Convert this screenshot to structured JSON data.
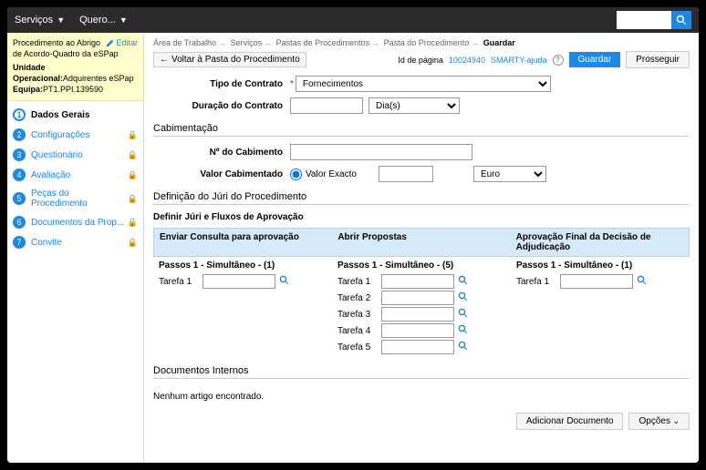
{
  "topbar": {
    "servicos": "Serviços",
    "quero": "Quero..."
  },
  "breadcrumb": {
    "p1": "Área de Trabalho",
    "p2": "Serviços",
    "p3": "Pastas de Procedimentos",
    "p4": "Pasta do Procedimento",
    "current": "Guardar"
  },
  "pageId": {
    "label": "Id de página",
    "value": "10024940"
  },
  "smartyHelp": "SMARTY-ajuda",
  "buttons": {
    "guardar": "Guardar",
    "prosseguir": "Prosseguir",
    "voltar": "Voltar à Pasta do Procedimento",
    "adicionarDoc": "Adicionar Documento",
    "opcoes": "Opções",
    "editar": "Editar"
  },
  "infobox": {
    "line1": "Procedimento ao Abrigo de Acordo-Quadro da eSPap",
    "unidadeLabel": "Unidade Operacional:",
    "unidadeVal": "Adquirentes eSPap",
    "equipaLabel": "Equipa:",
    "equipaVal": "PT1.PPI.139590"
  },
  "steps": [
    {
      "n": "1",
      "label": "Dados Gerais",
      "active": true
    },
    {
      "n": "2",
      "label": "Configurações",
      "lock": true
    },
    {
      "n": "3",
      "label": "Questionário",
      "lock": true
    },
    {
      "n": "4",
      "label": "Avaliação",
      "lock": true
    },
    {
      "n": "5",
      "label": "Peças do Procedimento",
      "lock": true
    },
    {
      "n": "6",
      "label": "Documentos da Prop...",
      "lock": true
    },
    {
      "n": "7",
      "label": "Convite",
      "lock": true
    }
  ],
  "form": {
    "tipoContratoLabel": "Tipo de Contrato",
    "tipoContratoVal": "Fornecimentos",
    "duracaoLabel": "Duração do Contrato",
    "duracaoUnit": "Dia(s)"
  },
  "cabimentacao": {
    "title": "Cabimentação",
    "numLabel": "Nº do Cabimento",
    "valorLabel": "Valor Cabimentado",
    "valorExacto": "Valor Exacto",
    "currency": "Euro"
  },
  "jury": {
    "title": "Definição do Júri do Procedimento",
    "subtitle": "Definir Júri e Fluxos de Aprovação",
    "cols": [
      {
        "header": "Enviar Consulta para aprovação",
        "passos": "Passos 1 - Simultâneo - (1)",
        "tarefas": [
          "Tarefa 1"
        ]
      },
      {
        "header": "Abrir Propostas",
        "passos": "Passos 1 - Simultâneo - (5)",
        "tarefas": [
          "Tarefa 1",
          "Tarefa 2",
          "Tarefa 3",
          "Tarefa 4",
          "Tarefa 5"
        ]
      },
      {
        "header": "Aprovação Final da Decisão de Adjudicação",
        "passos": "Passos 1 - Simultâneo - (1)",
        "tarefas": [
          "Tarefa 1"
        ]
      }
    ]
  },
  "docs": {
    "title": "Documentos Internos",
    "empty": "Nenhum artigo encontrado."
  }
}
